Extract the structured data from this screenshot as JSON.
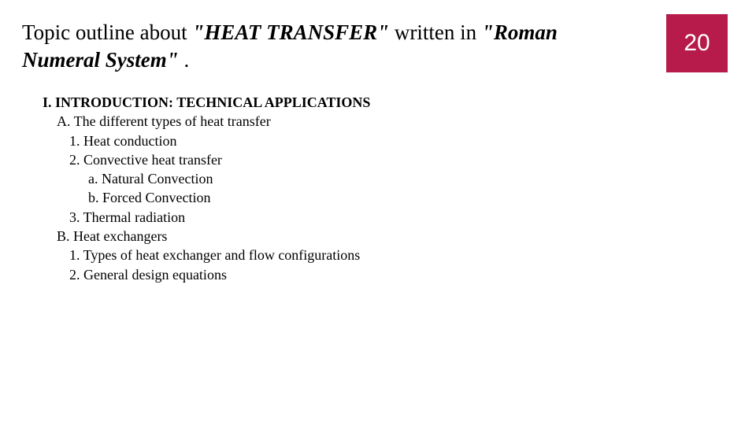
{
  "page": {
    "background_color": "#ffffff",
    "text_color": "#000000",
    "title": {
      "prefix": "Topic outline about ",
      "quoted1": "\"HEAT TRANSFER\"",
      "mid": " written in ",
      "quoted2": "\"Roman Numeral System\"",
      "suffix": " .",
      "fontsize": 27
    },
    "badge": {
      "value": "20",
      "bg_color": "#b71b4b",
      "text_color": "#ffffff",
      "fontsize": 30
    },
    "outline": {
      "fontsize": 18,
      "heading": "I. INTRODUCTION: TECHNICAL APPLICATIONS",
      "A": {
        "label": "A. The different types of heat transfer",
        "items": {
          "n1": "1. Heat conduction",
          "n2": "2. Convective heat transfer",
          "n2a": "a. Natural Convection",
          "n2b": "b. Forced Convection",
          "n3": "3.  Thermal radiation"
        }
      },
      "B": {
        "label": "B. Heat exchangers",
        "items": {
          "n1": "1.  Types of heat exchanger and flow configurations",
          "n2": "2.  General design equations"
        }
      }
    }
  }
}
